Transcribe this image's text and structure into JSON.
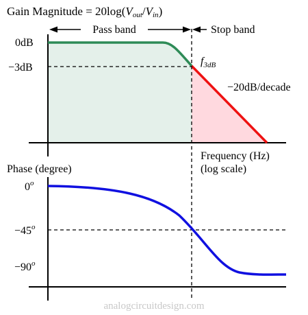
{
  "magnitude_plot": {
    "title_prefix": "Gain Magnitude = 20log(",
    "title_vout": "V",
    "title_vout_sub": "out",
    "title_slash": "/",
    "title_vin": "V",
    "title_vin_sub": "in",
    "title_suffix": ")",
    "pass_band_label": "Pass band",
    "stop_band_label": "Stop band",
    "label_0db": "0dB",
    "label_3db": "−3dB",
    "f3db_f": "f",
    "f3db_sub": "3dB",
    "rolloff_label": "−20dB/decade",
    "x_axis_label_line1": "Frequency (Hz)",
    "x_axis_label_line2": "(log scale)",
    "colors": {
      "passband_curve": "#2e8b57",
      "passband_fill": "#e4f0ea",
      "stopband_curve": "#ee1111",
      "stopband_fill": "#ffd9df"
    }
  },
  "phase_plot": {
    "title": "Phase (degree)",
    "tick_0": "0",
    "tick_45": "−45",
    "tick_90": "−90",
    "degree_mark": "o",
    "colors": {
      "curve": "#1010e0"
    }
  },
  "watermark": "analogcircuitdesign.com"
}
